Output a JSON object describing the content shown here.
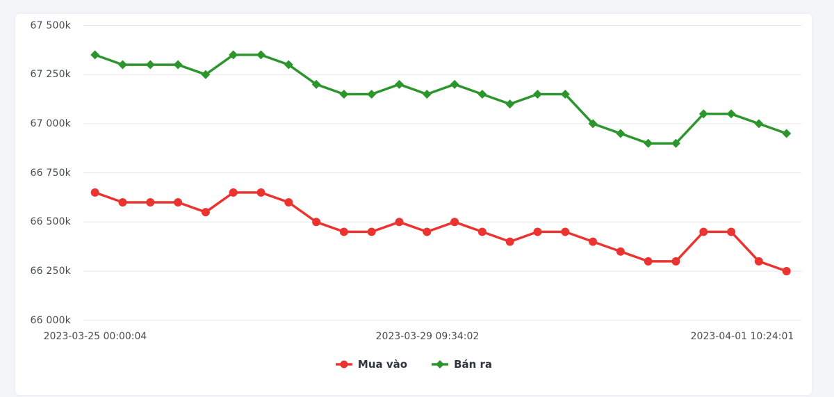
{
  "chart_data": {
    "type": "line",
    "title": "",
    "y_axis": {
      "min": 66000,
      "max": 67500,
      "step": 250,
      "unit": "k",
      "tick_labels": [
        "66 000k",
        "66 250k",
        "66 500k",
        "66 750k",
        "67 000k",
        "67 250k",
        "67 500k"
      ]
    },
    "x_axis": {
      "tick_labels": [
        "2023-03-25 00:00:04",
        "2023-03-29 09:34:02",
        "2023-04-01 10:24:01"
      ]
    },
    "grid": "horizontal",
    "legend_position": "bottom-center",
    "series": [
      {
        "name": "Mua vào",
        "color": "#eb3330",
        "marker": "circle",
        "values": [
          66650,
          66600,
          66600,
          66600,
          66550,
          66650,
          66650,
          66600,
          66500,
          66450,
          66450,
          66500,
          66450,
          66500,
          66450,
          66400,
          66450,
          66450,
          66400,
          66350,
          66300,
          66300,
          66450,
          66450,
          66300,
          66250
        ]
      },
      {
        "name": "Bán ra",
        "color": "#2c962c",
        "marker": "diamond",
        "values": [
          67350,
          67300,
          67300,
          67300,
          67250,
          67350,
          67350,
          67300,
          67200,
          67150,
          67150,
          67200,
          67150,
          67200,
          67150,
          67100,
          67150,
          67150,
          67000,
          66950,
          66900,
          66900,
          67050,
          67050,
          67000,
          66950
        ]
      }
    ]
  },
  "colors": {
    "page_background": "#f3f5f9",
    "panel_background": "#ffffff",
    "gridline": "#e6e6e6",
    "axis_text": "#474c52",
    "legend_text": "#2f353d"
  }
}
